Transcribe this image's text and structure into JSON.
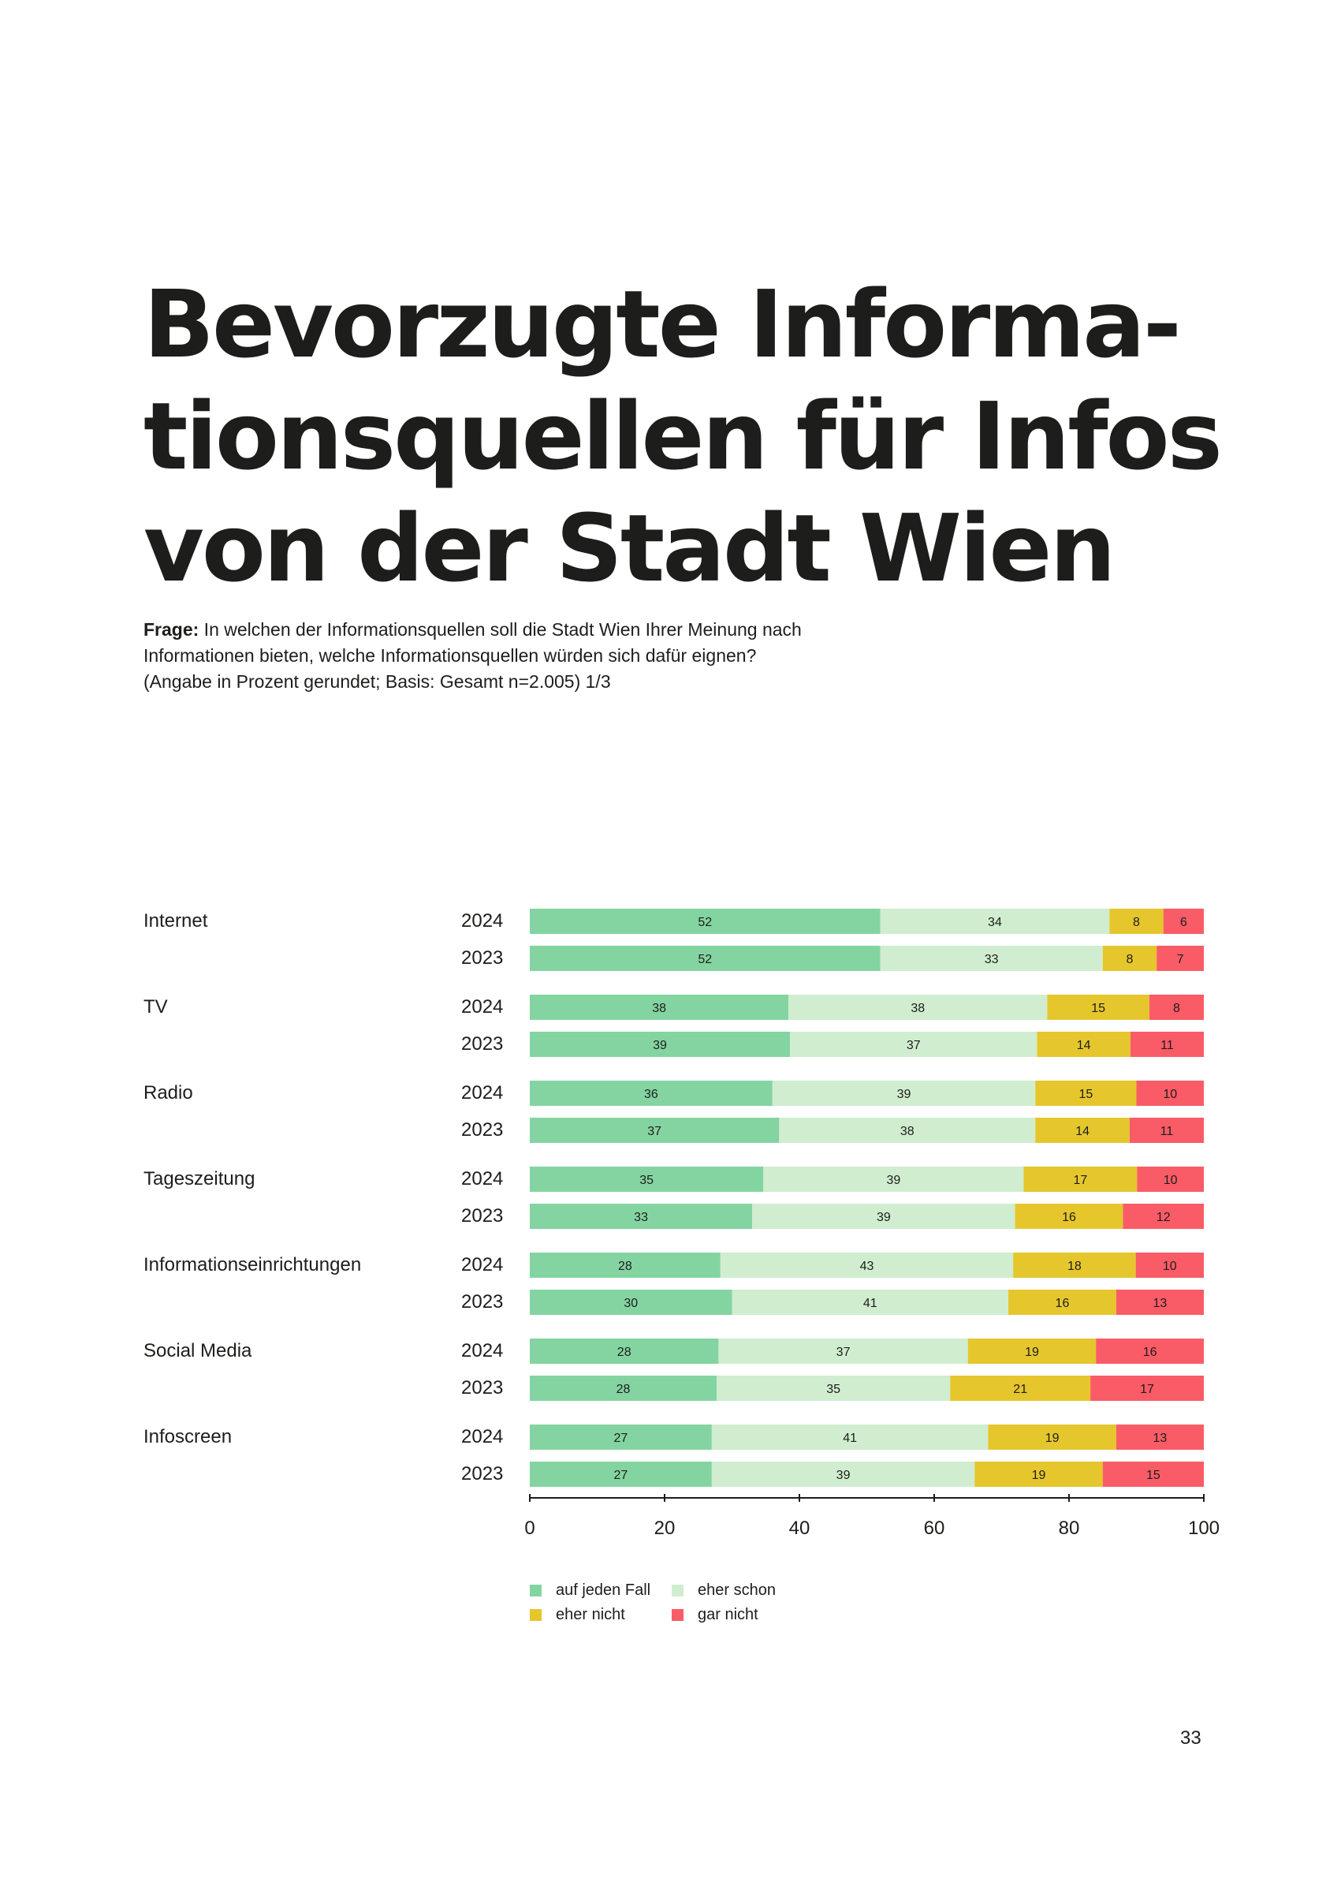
{
  "title_lines": [
    "Bevorzugte Informa-",
    "tionsquellen für Infos",
    "von der Stadt Wien"
  ],
  "question": {
    "label": "Frage:",
    "line1": " In welchen der Informationsquellen soll die Stadt Wien Ihrer Meinung nach",
    "line2": "Informationen bieten, welche Informationsquellen würden sich dafür eignen?",
    "line3": "(Angabe in Prozent gerundet; Basis: Gesamt n=2.005) 1/3"
  },
  "chart_data": {
    "type": "bar",
    "orientation": "horizontal",
    "stacked": true,
    "xlim": [
      0,
      100
    ],
    "xticks": [
      0,
      20,
      40,
      60,
      80,
      100
    ],
    "series_names": [
      "auf jeden Fall",
      "eher schon",
      "eher nicht",
      "gar nicht"
    ],
    "colors": [
      "#84d4a2",
      "#d0edd0",
      "#e5c62d",
      "#f95c67"
    ],
    "categories": [
      {
        "name": "Internet",
        "rows": [
          {
            "year": "2024",
            "values": [
              52,
              34,
              8,
              6
            ]
          },
          {
            "year": "2023",
            "values": [
              52,
              33,
              8,
              7
            ]
          }
        ]
      },
      {
        "name": "TV",
        "rows": [
          {
            "year": "2024",
            "values": [
              38,
              38,
              15,
              8
            ]
          },
          {
            "year": "2023",
            "values": [
              39,
              37,
              14,
              11
            ]
          }
        ]
      },
      {
        "name": "Radio",
        "rows": [
          {
            "year": "2024",
            "values": [
              36,
              39,
              15,
              10
            ]
          },
          {
            "year": "2023",
            "values": [
              37,
              38,
              14,
              11
            ]
          }
        ]
      },
      {
        "name": "Tageszeitung",
        "rows": [
          {
            "year": "2024",
            "values": [
              35,
              39,
              17,
              10
            ]
          },
          {
            "year": "2023",
            "values": [
              33,
              39,
              16,
              12
            ]
          }
        ]
      },
      {
        "name": "Informationseinrichtungen",
        "rows": [
          {
            "year": "2024",
            "values": [
              28,
              43,
              18,
              10
            ]
          },
          {
            "year": "2023",
            "values": [
              30,
              41,
              16,
              13
            ]
          }
        ]
      },
      {
        "name": "Social Media",
        "rows": [
          {
            "year": "2024",
            "values": [
              28,
              37,
              19,
              16
            ]
          },
          {
            "year": "2023",
            "values": [
              28,
              35,
              21,
              17
            ]
          }
        ]
      },
      {
        "name": "Infoscreen",
        "rows": [
          {
            "year": "2024",
            "values": [
              27,
              41,
              19,
              13
            ]
          },
          {
            "year": "2023",
            "values": [
              27,
              39,
              19,
              15
            ]
          }
        ]
      }
    ]
  },
  "legend": [
    {
      "label": "auf jeden Fall",
      "color": "#84d4a2"
    },
    {
      "label": "eher schon",
      "color": "#d0edd0"
    },
    {
      "label": "eher nicht",
      "color": "#e5c62d"
    },
    {
      "label": "gar nicht",
      "color": "#f95c67"
    }
  ],
  "page_number": "33"
}
